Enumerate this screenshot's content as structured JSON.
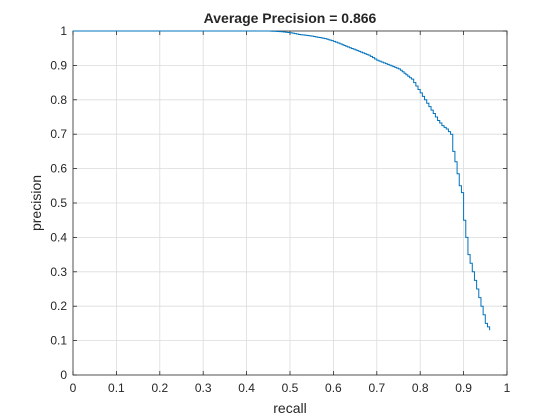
{
  "chart_data": {
    "type": "line",
    "title": "Average Precision = 0.866",
    "xlabel": "recall",
    "ylabel": "precision",
    "xlim": [
      0,
      1
    ],
    "ylim": [
      0,
      1
    ],
    "xticks": [
      "0",
      "0.1",
      "0.2",
      "0.3",
      "0.4",
      "0.5",
      "0.6",
      "0.7",
      "0.8",
      "0.9",
      "1"
    ],
    "yticks": [
      "0",
      "0.1",
      "0.2",
      "0.3",
      "0.4",
      "0.5",
      "0.6",
      "0.7",
      "0.8",
      "0.9",
      "1"
    ],
    "grid": true,
    "legend": "none",
    "colors": {
      "series": "#0072BD",
      "grid": "#DCDCDC",
      "axes": "#262626"
    },
    "series": [
      {
        "x": [
          0.0,
          0.05,
          0.1,
          0.2,
          0.3,
          0.4,
          0.45,
          0.48,
          0.5,
          0.52,
          0.55,
          0.58,
          0.6,
          0.62,
          0.65,
          0.68,
          0.7,
          0.72,
          0.75,
          0.78,
          0.8,
          0.81,
          0.82,
          0.83,
          0.84,
          0.85,
          0.86,
          0.87,
          0.875,
          0.88,
          0.89,
          0.895,
          0.9,
          0.905,
          0.91,
          0.92,
          0.93,
          0.94,
          0.95,
          0.96
        ],
        "y": [
          1.0,
          1.0,
          1.0,
          1.0,
          1.0,
          1.0,
          1.0,
          0.998,
          0.995,
          0.99,
          0.985,
          0.978,
          0.97,
          0.96,
          0.945,
          0.93,
          0.915,
          0.905,
          0.89,
          0.86,
          0.82,
          0.8,
          0.78,
          0.76,
          0.74,
          0.725,
          0.715,
          0.7,
          0.65,
          0.62,
          0.55,
          0.53,
          0.45,
          0.4,
          0.35,
          0.3,
          0.25,
          0.2,
          0.15,
          0.13
        ]
      }
    ]
  }
}
